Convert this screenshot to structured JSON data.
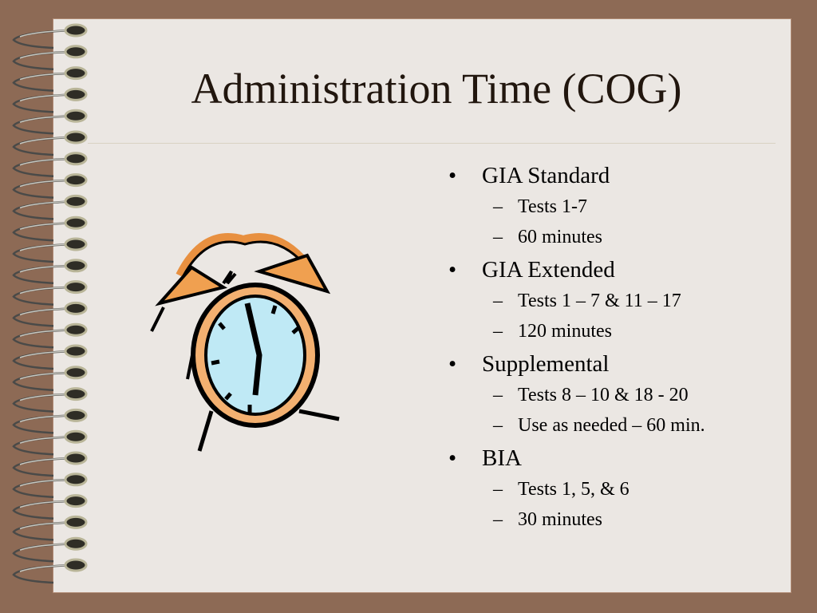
{
  "slide": {
    "title": "Administration Time (COG)",
    "bullets": [
      {
        "label": "GIA Standard",
        "sub": [
          "Tests 1-7",
          "60 minutes"
        ]
      },
      {
        "label": "GIA Extended",
        "sub": [
          "Tests 1 – 7 & 11 – 17",
          "120 minutes"
        ]
      },
      {
        "label": "Supplemental",
        "sub": [
          "Tests 8 – 10 & 18 - 20",
          "Use as needed – 60 min."
        ]
      },
      {
        "label": "BIA",
        "sub": [
          "Tests 1, 5, & 6",
          "30 minutes"
        ]
      }
    ]
  },
  "colors": {
    "background": "#8d6a55",
    "paper": "#ebe7e3",
    "title": "#21160e",
    "clock_face": "#bfe9f5",
    "clock_frame": "#f0a050"
  },
  "icons": {
    "decor": "spiral-binding",
    "clipart": "alarm-clock-icon"
  }
}
